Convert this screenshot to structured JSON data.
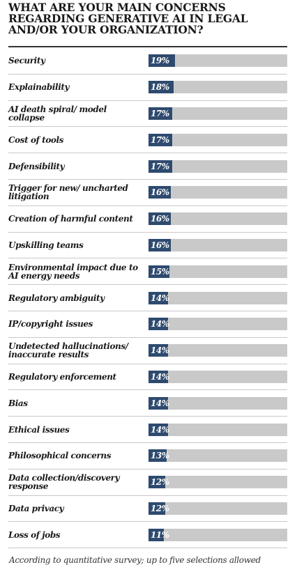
{
  "chart_data": {
    "type": "bar",
    "title": "WHAT ARE YOUR MAIN CONCERNS REGARDING GENERATIVE AI IN LEGAL AND/OR YOUR ORGANIZATION?",
    "categories": [
      "Security",
      "Explainability",
      "AI death spiral/ model collapse",
      "Cost of tools",
      "Defensibility",
      "Trigger for new/ uncharted litigation",
      "Creation of harmful content",
      "Upskilling teams",
      "Environmental impact due to AI energy needs",
      "Regulatory ambiguity",
      "IP/copyright issues",
      "Undetected hallucinations/ inaccurate results",
      "Regulatory enforcement",
      "Bias",
      "Ethical issues",
      "Philosophical concerns",
      "Data collection/discovery response",
      "Data privacy",
      "Loss of jobs"
    ],
    "values": [
      19,
      18,
      17,
      17,
      17,
      16,
      16,
      16,
      15,
      14,
      14,
      14,
      14,
      14,
      14,
      13,
      12,
      12,
      11
    ],
    "value_labels": [
      "19%",
      "18%",
      "17%",
      "17%",
      "17%",
      "16%",
      "16%",
      "16%",
      "15%",
      "14%",
      "14%",
      "14%",
      "14%",
      "14%",
      "14%",
      "13%",
      "12%",
      "12%",
      "11%"
    ],
    "xlim": [
      0,
      100
    ],
    "orientation": "horizontal",
    "bar_color": "#2e4a6e",
    "track_color": "#c9c9c9",
    "footnote": "According to quantitative survey; up to five selections allowed"
  }
}
